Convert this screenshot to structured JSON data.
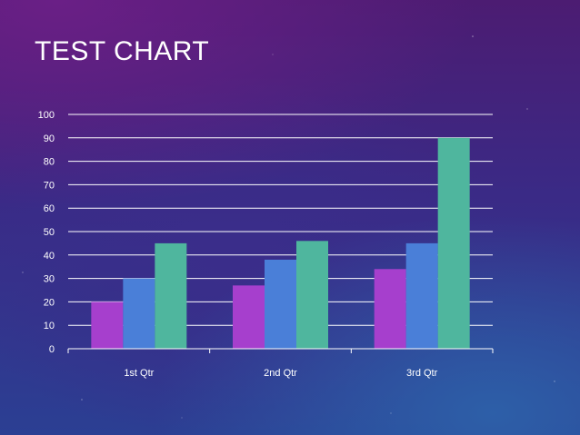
{
  "slide": {
    "title": "TEST CHART"
  },
  "chart_data": {
    "type": "bar",
    "title": "",
    "xlabel": "",
    "ylabel": "",
    "categories": [
      "1st Qtr",
      "2nd Qtr",
      "3rd Qtr"
    ],
    "series": [
      {
        "values": [
          20,
          27,
          34
        ],
        "color": "#a63fcd"
      },
      {
        "values": [
          30,
          38,
          45
        ],
        "color": "#4a7fd8"
      },
      {
        "values": [
          45,
          46,
          90
        ],
        "color": "#4fb69e"
      }
    ],
    "ylim": [
      0,
      100
    ],
    "yticks": [
      0,
      10,
      20,
      30,
      40,
      50,
      60,
      70,
      80,
      90,
      100
    ],
    "grid": true,
    "legend": "none"
  }
}
